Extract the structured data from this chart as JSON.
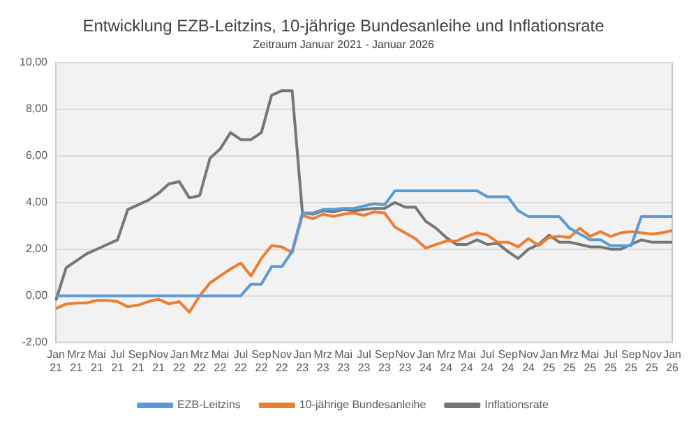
{
  "chart_data": {
    "type": "line",
    "title": "Entwicklung EZB-Leitzins, 10-jährige Bundesanleihe und Inflationsrate",
    "subtitle": "Zeitraum Januar 2021 - Januar 2026",
    "categories": [
      "Jan 21",
      null,
      "Mrz 21",
      null,
      "Mai 21",
      null,
      "Jul 21",
      null,
      "Sep 21",
      null,
      "Nov 21",
      null,
      "Jan 22",
      null,
      "Mrz 22",
      null,
      "Mai 22",
      null,
      "Jul 22",
      null,
      "Sep 22",
      null,
      "Nov 22",
      null,
      "Jan 23",
      null,
      "Mrz 23",
      null,
      "Mai 23",
      null,
      "Jul 23",
      null,
      "Sep 23",
      null,
      "Nov 23",
      null,
      "Jan 24",
      null,
      "Mrz 24",
      null,
      "Mai 24",
      null,
      "Jul 24",
      null,
      "Sep 24",
      null,
      "Nov 24",
      null,
      "Jan 25",
      null,
      "Mrz 25",
      null,
      "Mai 25",
      null,
      "Jul 25",
      null,
      "Sep 25",
      null,
      "Nov 25",
      null,
      "Jan 26"
    ],
    "series": [
      {
        "name": "EZB-Leitzins",
        "color": "#5b9bd5",
        "values": [
          0,
          0,
          0,
          0,
          0,
          0,
          0,
          0,
          0,
          0,
          0,
          0,
          0,
          0,
          0,
          0,
          0,
          0,
          0,
          0.5,
          0.5,
          1.25,
          1.25,
          1.9,
          3.55,
          3.55,
          3.7,
          3.7,
          3.75,
          3.75,
          3.85,
          3.95,
          3.9,
          4.5,
          4.5,
          4.5,
          4.5,
          4.5,
          4.5,
          4.5,
          4.5,
          4.5,
          4.25,
          4.25,
          4.25,
          3.65,
          3.4,
          3.4,
          3.4,
          3.4,
          2.9,
          2.65,
          2.4,
          2.4,
          2.15,
          2.15,
          2.15,
          3.4,
          3.4,
          3.4,
          3.4
        ]
      },
      {
        "name": "10-jährige Bundesanleihe",
        "color": "#ed7d31",
        "values": [
          -0.55,
          -0.35,
          -0.32,
          -0.3,
          -0.2,
          -0.2,
          -0.25,
          -0.47,
          -0.4,
          -0.25,
          -0.15,
          -0.35,
          -0.25,
          -0.7,
          0,
          0.55,
          0.85,
          1.15,
          1.4,
          0.85,
          1.6,
          2.15,
          2.1,
          1.85,
          3.45,
          3.3,
          3.5,
          3.4,
          3.5,
          3.55,
          3.45,
          3.6,
          3.55,
          2.95,
          2.7,
          2.45,
          2.05,
          2.2,
          2.35,
          2.35,
          2.55,
          2.7,
          2.6,
          2.3,
          2.3,
          2.1,
          2.45,
          2.15,
          2.5,
          2.55,
          2.5,
          2.9,
          2.55,
          2.75,
          2.55,
          2.7,
          2.75,
          2.7,
          2.65,
          2.7,
          2.8
        ]
      },
      {
        "name": "Inflationsrate",
        "color": "#767676",
        "values": [
          -0.2,
          1.2,
          1.5,
          1.8,
          2.0,
          2.2,
          2.4,
          3.7,
          3.9,
          4.1,
          4.4,
          4.8,
          4.9,
          4.2,
          4.3,
          5.9,
          6.3,
          7.0,
          6.7,
          6.7,
          7.0,
          8.6,
          8.8,
          8.8,
          3.55,
          3.5,
          3.65,
          3.6,
          3.7,
          3.65,
          3.7,
          3.75,
          3.75,
          4.0,
          3.8,
          3.8,
          3.2,
          2.9,
          2.5,
          2.2,
          2.2,
          2.4,
          2.2,
          2.25,
          1.9,
          1.6,
          2.0,
          2.2,
          2.6,
          2.3,
          2.3,
          2.2,
          2.1,
          2.1,
          2.0,
          2.0,
          2.2,
          2.4,
          2.3,
          2.3,
          2.3
        ]
      }
    ],
    "ylim": [
      -2,
      10
    ],
    "yticks": [
      {
        "value": -2,
        "label": "-2,00"
      },
      {
        "value": 0,
        "label": "0,00"
      },
      {
        "value": 2,
        "label": "2,00"
      },
      {
        "value": 4,
        "label": "4,00"
      },
      {
        "value": 6,
        "label": "6,00"
      },
      {
        "value": 8,
        "label": "8,00"
      },
      {
        "value": 10,
        "label": "10,00"
      }
    ],
    "grid": "y",
    "legend": "bottom",
    "marker": "none",
    "line_style": "solid"
  }
}
